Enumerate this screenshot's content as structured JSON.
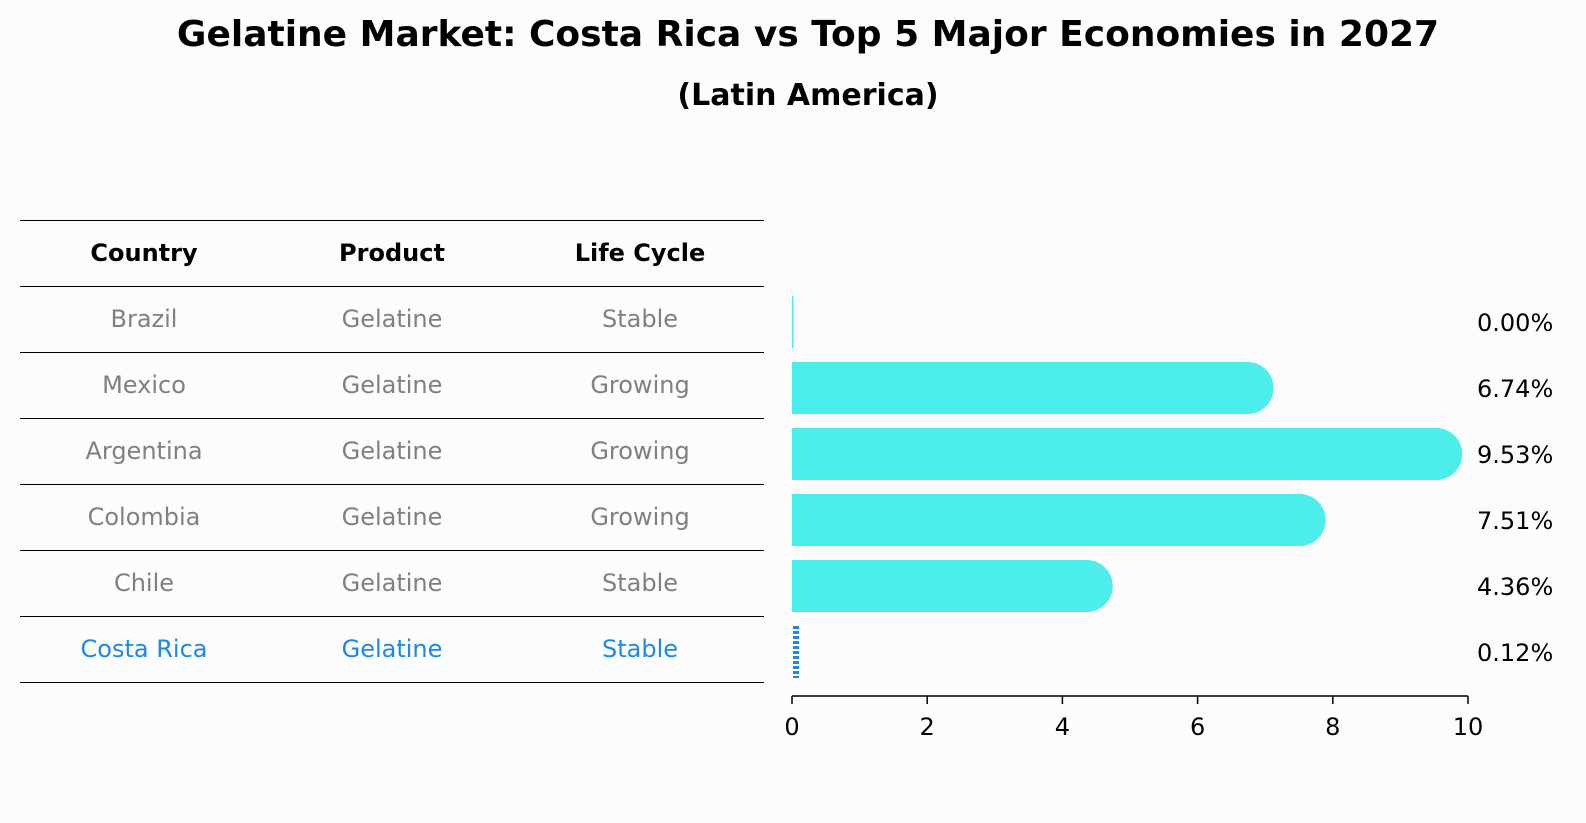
{
  "title": "Gelatine Market: Costa Rica vs Top 5 Major Economies in 2027",
  "subtitle": "(Latin America)",
  "table": {
    "headers": [
      "Country",
      "Product",
      "Life Cycle"
    ],
    "rows": [
      [
        "Brazil",
        "Gelatine",
        "Stable"
      ],
      [
        "Mexico",
        "Gelatine",
        "Growing"
      ],
      [
        "Argentina",
        "Gelatine",
        "Growing"
      ],
      [
        "Colombia",
        "Gelatine",
        "Growing"
      ],
      [
        "Chile",
        "Gelatine",
        "Stable"
      ],
      [
        "Costa Rica",
        "Gelatine",
        "Stable"
      ]
    ]
  },
  "colors": {
    "bar": "#4dedec",
    "highlight": "#1e88e5",
    "row_text": "#808080"
  },
  "chart_data": {
    "type": "bar",
    "orientation": "horizontal",
    "categories": [
      "Brazil",
      "Mexico",
      "Argentina",
      "Colombia",
      "Chile",
      "Costa Rica"
    ],
    "values": [
      0.0,
      6.74,
      9.53,
      7.51,
      4.36,
      0.12
    ],
    "value_labels": [
      "0.00%",
      "6.74%",
      "9.53%",
      "7.51%",
      "4.36%",
      "0.12%"
    ],
    "highlight_category": "Costa Rica",
    "xlim": [
      0,
      10
    ],
    "xticks": [
      0,
      2,
      4,
      6,
      8,
      10
    ],
    "title": "",
    "xlabel": "",
    "ylabel": ""
  }
}
